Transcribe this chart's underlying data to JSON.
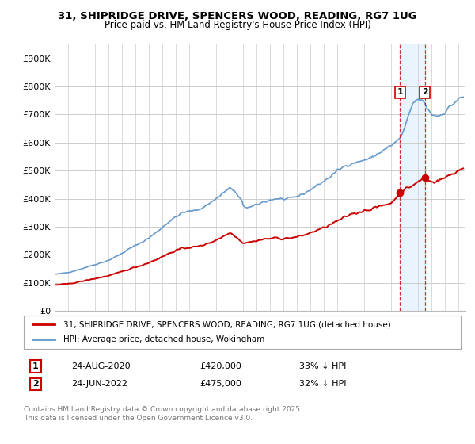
{
  "title_line1": "31, SHIPRIDGE DRIVE, SPENCERS WOOD, READING, RG7 1UG",
  "title_line2": "Price paid vs. HM Land Registry's House Price Index (HPI)",
  "ylim": [
    0,
    950000
  ],
  "yticks": [
    0,
    100000,
    200000,
    300000,
    400000,
    500000,
    600000,
    700000,
    800000,
    900000
  ],
  "ytick_labels": [
    "£0",
    "£100K",
    "£200K",
    "£300K",
    "£400K",
    "£500K",
    "£600K",
    "£700K",
    "£800K",
    "£900K"
  ],
  "legend_label_red": "31, SHIPRIDGE DRIVE, SPENCERS WOOD, READING, RG7 1UG (detached house)",
  "legend_label_blue": "HPI: Average price, detached house, Wokingham",
  "annotation1_date": "24-AUG-2020",
  "annotation1_price": "£420,000",
  "annotation1_hpi": "33% ↓ HPI",
  "annotation2_date": "24-JUN-2022",
  "annotation2_price": "£475,000",
  "annotation2_hpi": "32% ↓ HPI",
  "footer": "Contains HM Land Registry data © Crown copyright and database right 2025.\nThis data is licensed under the Open Government Licence v3.0.",
  "red_color": "#cc0000",
  "blue_color": "#6699cc",
  "blue_fill_color": "#ddeeff",
  "background_color": "#ffffff",
  "grid_color": "#cccccc",
  "sale1_x": 2020.646,
  "sale1_y": 420000,
  "sale2_x": 2022.479,
  "sale2_y": 475000,
  "xmin": 1995.0,
  "xmax": 2025.5
}
